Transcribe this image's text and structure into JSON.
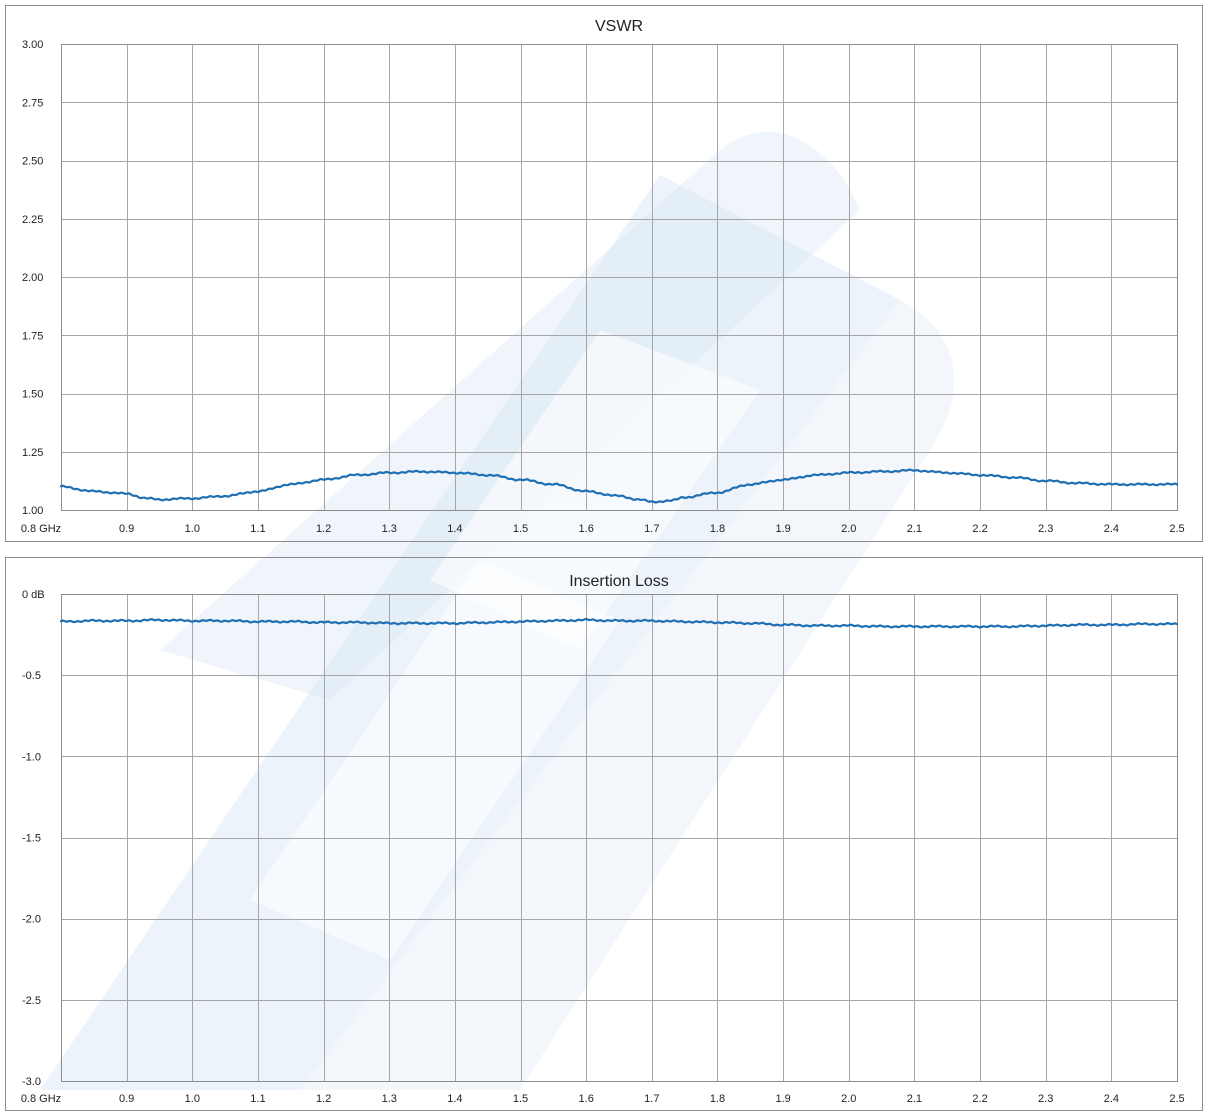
{
  "colors": {
    "trace": "#1f6fb2",
    "watermark": "#dce9f5"
  },
  "watermark_icon": "pe-logo-watermark",
  "chart_data": [
    {
      "type": "line",
      "title": "VSWR",
      "xlabel": "",
      "ylabel": "",
      "xlim": [
        0.8,
        2.5
      ],
      "ylim": [
        1.0,
        3.0
      ],
      "grid": true,
      "x_ticks": [
        0.8,
        0.9,
        1.0,
        1.1,
        1.2,
        1.3,
        1.4,
        1.5,
        1.6,
        1.7,
        1.8,
        1.9,
        2.0,
        2.1,
        2.2,
        2.3,
        2.4,
        2.5
      ],
      "x_tick_labels": [
        "0.8 GHz",
        "0.9",
        "1.0",
        "1.1",
        "1.2",
        "1.3",
        "1.4",
        "1.5",
        "1.6",
        "1.7",
        "1.8",
        "1.9",
        "2.0",
        "2.1",
        "2.2",
        "2.3",
        "2.4",
        "2.5"
      ],
      "y_ticks": [
        1.0,
        1.25,
        1.5,
        1.75,
        2.0,
        2.25,
        2.5,
        2.75,
        3.0
      ],
      "y_tick_labels": [
        "1.00",
        "1.25",
        "1.50",
        "1.75",
        "2.00",
        "2.25",
        "2.50",
        "2.75",
        "3.00"
      ],
      "series": [
        {
          "x": [
            0.8,
            0.85,
            0.9,
            0.93,
            0.95,
            1.0,
            1.05,
            1.1,
            1.15,
            1.2,
            1.25,
            1.3,
            1.35,
            1.4,
            1.45,
            1.5,
            1.55,
            1.6,
            1.65,
            1.68,
            1.7,
            1.73,
            1.75,
            1.8,
            1.85,
            1.9,
            1.95,
            2.0,
            2.05,
            2.1,
            2.15,
            2.2,
            2.25,
            2.3,
            2.35,
            2.4,
            2.45,
            2.5
          ],
          "values": [
            1.1,
            1.08,
            1.07,
            1.05,
            1.045,
            1.05,
            1.06,
            1.08,
            1.11,
            1.13,
            1.15,
            1.16,
            1.165,
            1.16,
            1.15,
            1.13,
            1.11,
            1.08,
            1.06,
            1.045,
            1.035,
            1.04,
            1.055,
            1.075,
            1.11,
            1.13,
            1.15,
            1.16,
            1.165,
            1.17,
            1.16,
            1.15,
            1.14,
            1.125,
            1.115,
            1.11,
            1.11,
            1.11
          ]
        }
      ]
    },
    {
      "type": "line",
      "title": "Insertion Loss",
      "xlabel": "",
      "ylabel": "",
      "xlim": [
        0.8,
        2.5
      ],
      "ylim": [
        -3.0,
        0.0
      ],
      "grid": true,
      "x_ticks": [
        0.8,
        0.9,
        1.0,
        1.1,
        1.2,
        1.3,
        1.4,
        1.5,
        1.6,
        1.7,
        1.8,
        1.9,
        2.0,
        2.1,
        2.2,
        2.3,
        2.4,
        2.5
      ],
      "x_tick_labels": [
        "0.8 GHz",
        "0.9",
        "1.0",
        "1.1",
        "1.2",
        "1.3",
        "1.4",
        "1.5",
        "1.6",
        "1.7",
        "1.8",
        "1.9",
        "2.0",
        "2.1",
        "2.2",
        "2.3",
        "2.4",
        "2.5"
      ],
      "y_ticks": [
        0.0,
        -0.5,
        -1.0,
        -1.5,
        -2.0,
        -2.5,
        -3.0
      ],
      "y_tick_labels": [
        "0 dB",
        "-0.5",
        "-1.0",
        "-1.5",
        "-2.0",
        "-2.5",
        "-3.0"
      ],
      "series": [
        {
          "x": [
            0.8,
            0.85,
            0.9,
            0.95,
            1.0,
            1.05,
            1.1,
            1.15,
            1.2,
            1.25,
            1.3,
            1.35,
            1.4,
            1.45,
            1.5,
            1.55,
            1.6,
            1.65,
            1.7,
            1.75,
            1.8,
            1.85,
            1.9,
            1.95,
            2.0,
            2.05,
            2.1,
            2.15,
            2.2,
            2.25,
            2.3,
            2.35,
            2.4,
            2.45,
            2.5
          ],
          "values": [
            -0.17,
            -0.165,
            -0.165,
            -0.16,
            -0.165,
            -0.165,
            -0.17,
            -0.17,
            -0.175,
            -0.175,
            -0.18,
            -0.18,
            -0.18,
            -0.175,
            -0.17,
            -0.165,
            -0.16,
            -0.165,
            -0.165,
            -0.17,
            -0.175,
            -0.18,
            -0.19,
            -0.195,
            -0.195,
            -0.2,
            -0.2,
            -0.2,
            -0.2,
            -0.2,
            -0.195,
            -0.19,
            -0.19,
            -0.185,
            -0.185
          ]
        }
      ]
    }
  ]
}
